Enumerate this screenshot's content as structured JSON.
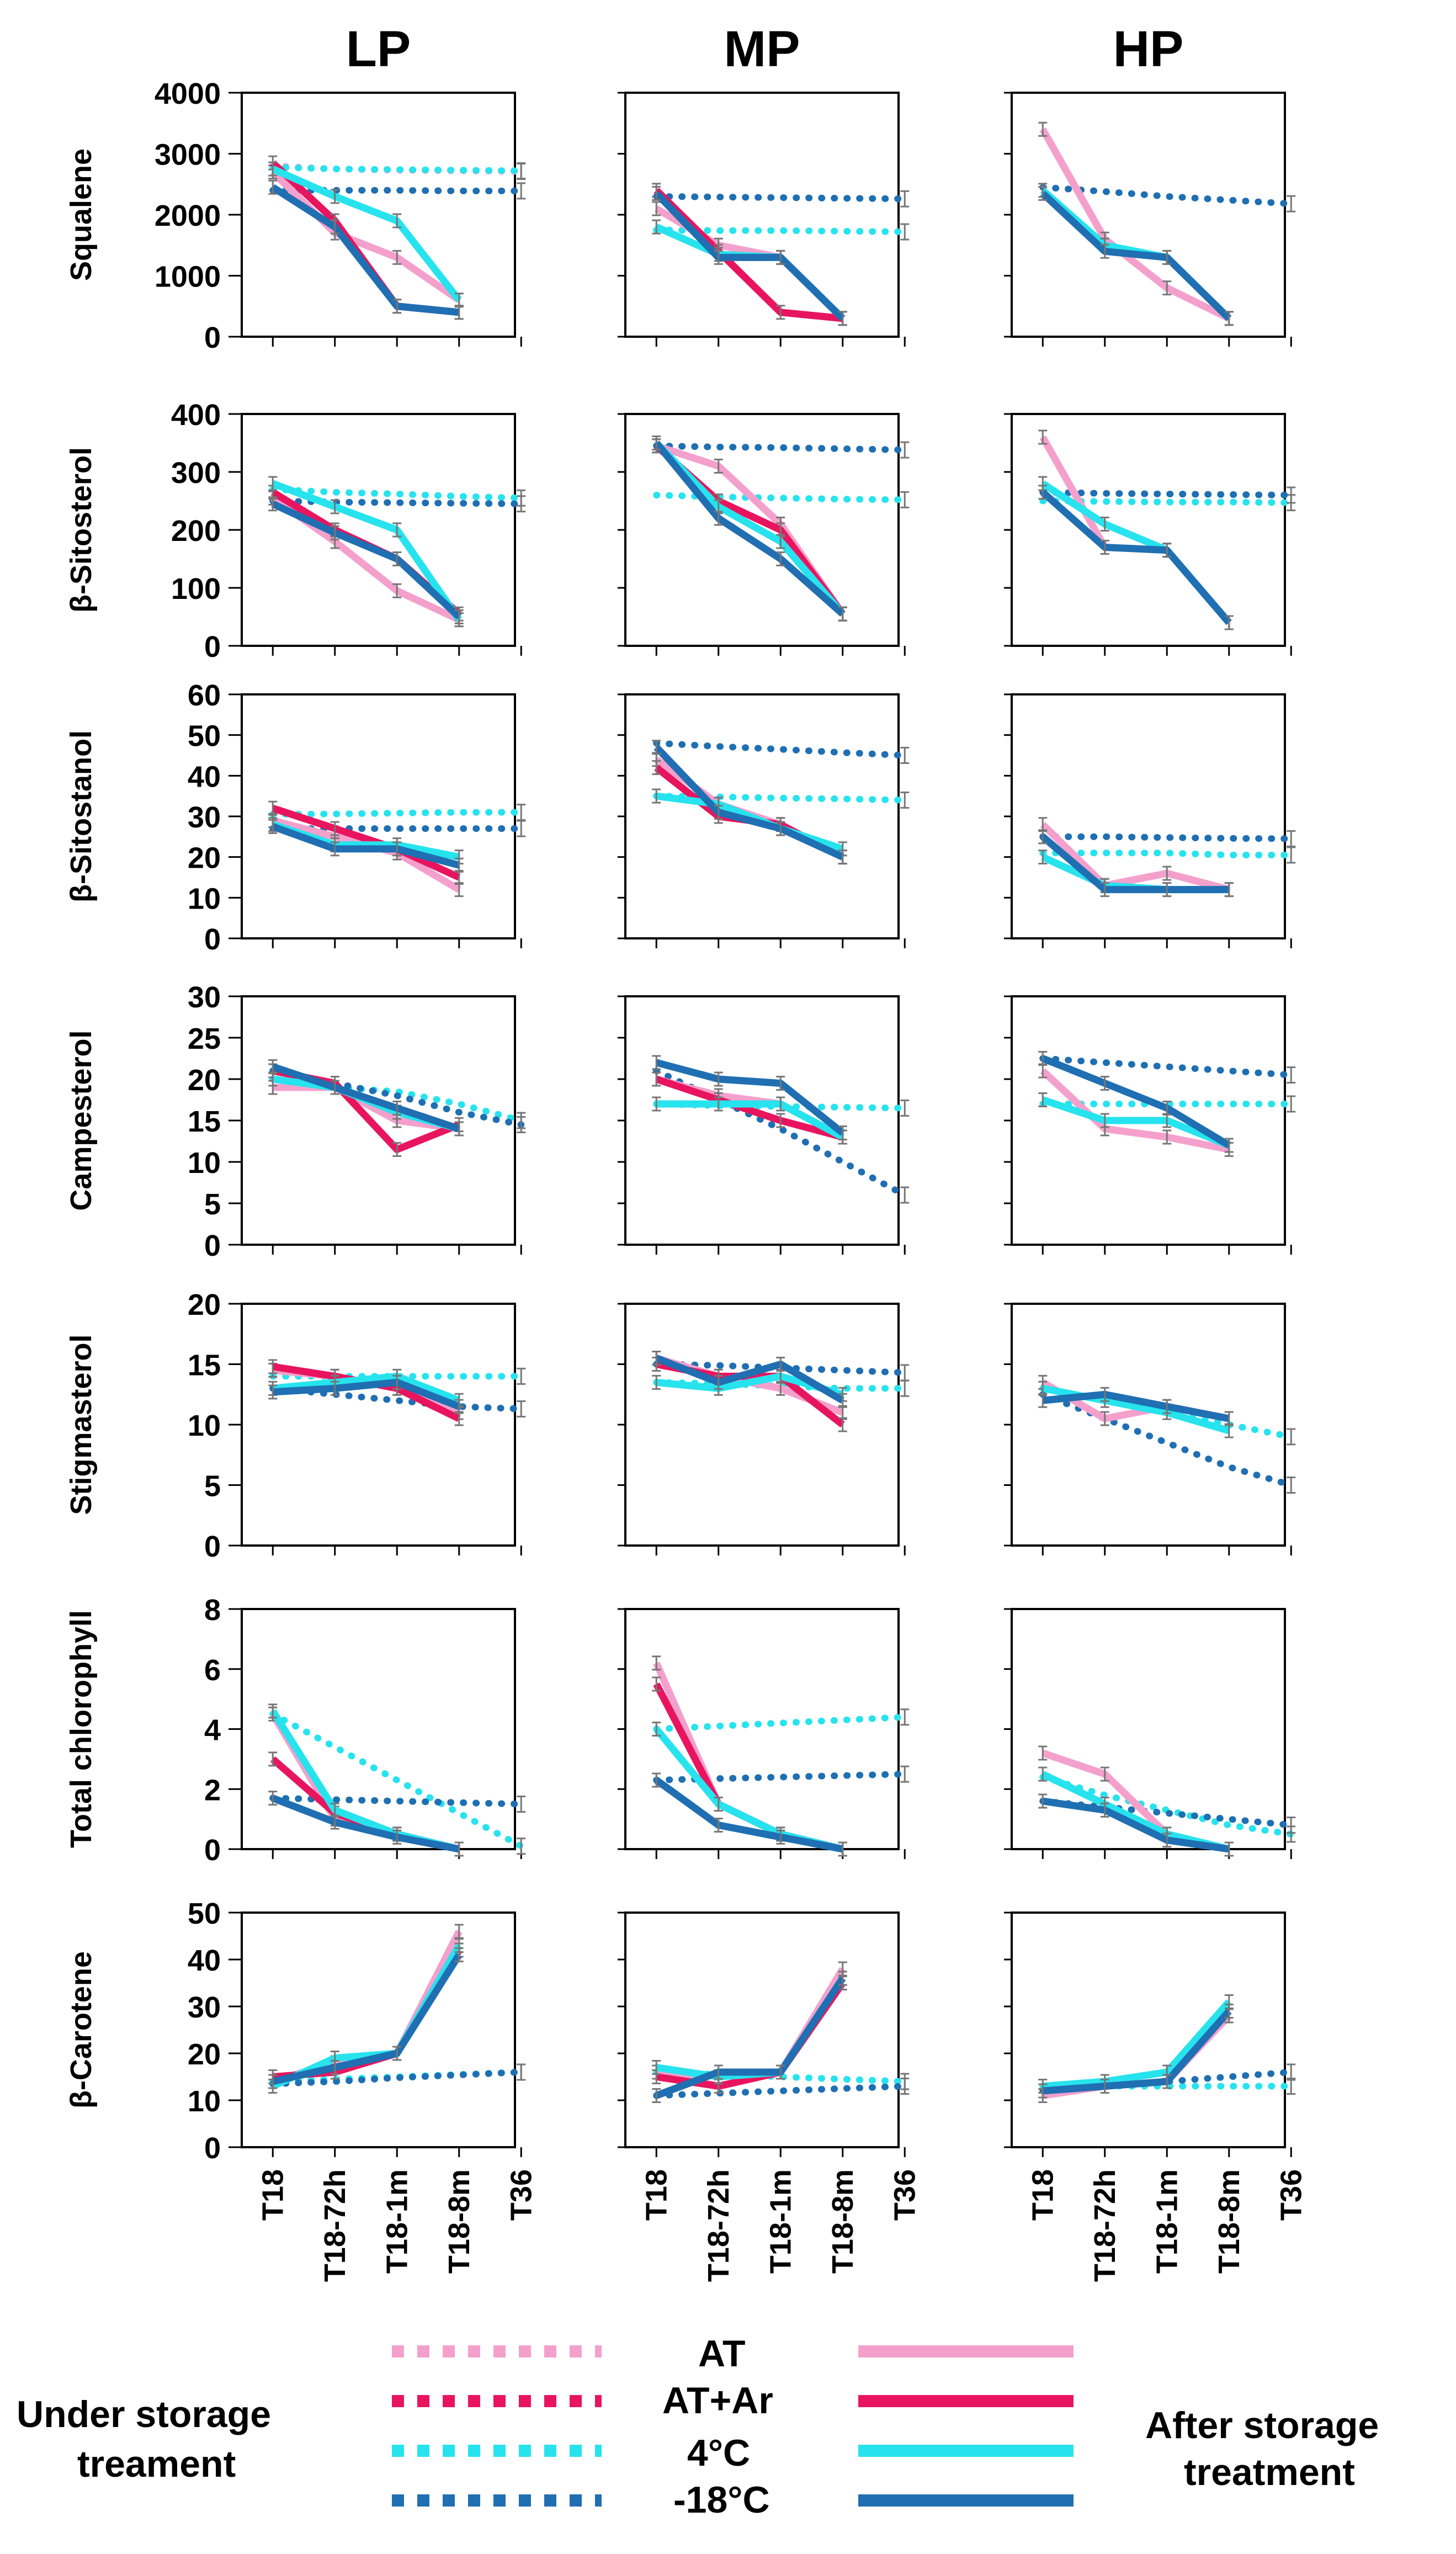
{
  "figure": {
    "columns": [
      "LP",
      "MP",
      "HP"
    ],
    "x_categories": [
      "T18",
      "T18-72h",
      "T18-1m",
      "T18-8m",
      "T36"
    ]
  },
  "legend": {
    "left_label_line1": "Under storage",
    "left_label_line2": "treament",
    "right_label_line1": "After storage",
    "right_label_line2": "treatment",
    "items": [
      {
        "key": "AT",
        "label": "AT",
        "color": "#f4a0cc"
      },
      {
        "key": "ATAr",
        "label": "AT+Ar",
        "color": "#e8155e"
      },
      {
        "key": "C4",
        "label": "4°C",
        "color": "#26e3ee"
      },
      {
        "key": "Cm18",
        "label": "-18°C",
        "color": "#1f6fb2"
      }
    ]
  },
  "chart_data": [
    {
      "type": "line",
      "row_label": "Squalene",
      "ylim": [
        0,
        4000
      ],
      "yticks": [
        "0",
        "1000",
        "2000",
        "3000",
        "4000"
      ],
      "panels": [
        {
          "column": "LP",
          "under": {
            "AT": [
              2800,
              2750,
              2730,
              2720,
              2710
            ],
            "C4": [
              2780,
              2750,
              2740,
              2730,
              2720
            ],
            "Cm18": [
              2400,
              2400,
              2400,
              2390,
              2390
            ]
          },
          "after": {
            "AT": [
              2700,
              1700,
              1300,
              600
            ],
            "ATAr": [
              2850,
              1900,
              500,
              400
            ],
            "C4": [
              2750,
              2300,
              1900,
              600
            ],
            "Cm18": [
              2450,
              1800,
              500,
              400
            ]
          }
        },
        {
          "column": "MP",
          "under": {
            "C4": [
              1750,
              1740,
              1740,
              1730,
              1720
            ],
            "Cm18": [
              2300,
              2290,
              2280,
              2270,
              2260
            ]
          },
          "after": {
            "AT": [
              2100,
              1500,
              1300,
              300
            ],
            "ATAr": [
              2400,
              1400,
              400,
              300
            ],
            "C4": [
              1800,
              1350,
              1300,
              300
            ],
            "Cm18": [
              2350,
              1300,
              1300,
              300
            ]
          }
        },
        {
          "column": "HP",
          "under": {
            "Cm18": [
              2450,
              2380,
              2300,
              2240,
              2180
            ]
          },
          "after": {
            "AT": [
              3400,
              1600,
              800,
              300
            ],
            "C4": [
              2400,
              1500,
              1300,
              300
            ],
            "Cm18": [
              2350,
              1400,
              1300,
              300
            ]
          }
        }
      ]
    },
    {
      "type": "line",
      "row_label": "β-Sitosterol",
      "ylim": [
        0,
        400
      ],
      "yticks": [
        "0",
        "100",
        "200",
        "300",
        "400"
      ],
      "panels": [
        {
          "column": "LP",
          "under": {
            "C4": [
              270,
              265,
              262,
              258,
              255
            ],
            "Cm18": [
              250,
              248,
              247,
              246,
              245
            ]
          },
          "after": {
            "AT": [
              255,
              180,
              95,
              45
            ],
            "ATAr": [
              265,
              200,
              150,
              55
            ],
            "C4": [
              280,
              240,
              200,
              45
            ],
            "Cm18": [
              245,
              195,
              150,
              50
            ]
          }
        },
        {
          "column": "MP",
          "under": {
            "C4": [
              260,
              257,
              255,
              253,
              252
            ],
            "Cm18": [
              345,
              343,
              342,
              340,
              338
            ]
          },
          "after": {
            "AT": [
              345,
              310,
              210,
              55
            ],
            "ATAr": [
              345,
              250,
              200,
              55
            ],
            "C4": [
              350,
              240,
              180,
              55
            ],
            "Cm18": [
              350,
              220,
              150,
              55
            ]
          }
        },
        {
          "column": "HP",
          "under": {
            "C4": [
              250,
              249,
              248,
              248,
              247
            ],
            "Cm18": [
              265,
              263,
              262,
              261,
              260
            ]
          },
          "after": {
            "AT": [
              360,
              170,
              165,
              40
            ],
            "C4": [
              280,
              210,
              165,
              40
            ],
            "Cm18": [
              265,
              170,
              165,
              40
            ]
          }
        }
      ]
    },
    {
      "type": "line",
      "row_label": "β-Sitostanol",
      "ylim": [
        0,
        60
      ],
      "yticks": [
        "0",
        "10",
        "20",
        "30",
        "40",
        "50",
        "60"
      ],
      "panels": [
        {
          "column": "LP",
          "under": {
            "C4": [
              30.5,
              30.6,
              30.8,
              31,
              31
            ],
            "Cm18": [
              27,
              27,
              27,
              27,
              27
            ]
          },
          "after": {
            "AT": [
              29,
              25,
              21,
              12
            ],
            "ATAr": [
              32,
              27,
              22,
              15
            ],
            "C4": [
              28,
              23,
              23,
              20
            ],
            "Cm18": [
              27.5,
              22,
              22,
              18
            ]
          }
        },
        {
          "column": "MP",
          "under": {
            "C4": [
              35,
              34.8,
              34.5,
              34.3,
              34
            ],
            "Cm18": [
              48,
              47.2,
              46.5,
              45.7,
              45
            ]
          },
          "after": {
            "AT": [
              44,
              33,
              28,
              20
            ],
            "ATAr": [
              42,
              30,
              28,
              20
            ],
            "C4": [
              35,
              33,
              27,
              22
            ],
            "Cm18": [
              47,
              31,
              27,
              20
            ]
          }
        },
        {
          "column": "HP",
          "under": {
            "C4": [
              21,
              21,
              21,
              20.5,
              20.5
            ],
            "Cm18": [
              25,
              25,
              24.8,
              24.6,
              24.5
            ]
          },
          "after": {
            "AT": [
              28,
              13,
              16,
              12
            ],
            "C4": [
              20,
              13,
              12,
              12
            ],
            "Cm18": [
              25,
              12,
              12,
              12
            ]
          }
        }
      ]
    },
    {
      "type": "line",
      "row_label": "Campesterol",
      "ylim": [
        0,
        30
      ],
      "yticks": [
        "0",
        "5",
        "10",
        "15",
        "20",
        "25",
        "30"
      ],
      "panels": [
        {
          "column": "LP",
          "under": {
            "C4": [
              20,
              19,
              18.5,
              17,
              15
            ],
            "Cm18": [
              21,
              19.5,
              18,
              16,
              14.5
            ]
          },
          "after": {
            "AT": [
              19,
              19,
              15,
              14
            ],
            "ATAr": [
              21,
              19.5,
              11.5,
              14.5
            ],
            "C4": [
              20,
              19,
              16,
              14
            ],
            "Cm18": [
              21.5,
              19,
              16.5,
              14
            ]
          }
        },
        {
          "column": "MP",
          "under": {
            "C4": [
              17,
              16.8,
              16.7,
              16.6,
              16.5
            ],
            "Cm18": [
              21,
              17.5,
              14,
              10,
              6
            ]
          },
          "after": {
            "AT": [
              20,
              18,
              17,
              13
            ],
            "ATAr": [
              20,
              17.5,
              15,
              13
            ],
            "C4": [
              17,
              17,
              17,
              13
            ],
            "Cm18": [
              22,
              20,
              19.5,
              13.5
            ]
          }
        },
        {
          "column": "HP",
          "under": {
            "C4": [
              17,
              17,
              17,
              17,
              17
            ],
            "Cm18": [
              22.5,
              22,
              21.5,
              21,
              20.5
            ]
          },
          "after": {
            "AT": [
              21,
              14,
              13,
              11.5
            ],
            "C4": [
              17.5,
              15,
              15,
              12
            ],
            "Cm18": [
              22.5,
              19.5,
              16.5,
              12
            ]
          }
        }
      ]
    },
    {
      "type": "line",
      "row_label": "Stigmasterol",
      "ylim": [
        0,
        20
      ],
      "yticks": [
        "0",
        "5",
        "10",
        "15",
        "20"
      ],
      "panels": [
        {
          "column": "LP",
          "under": {
            "C4": [
              14,
              14,
              14,
              14,
              14
            ],
            "Cm18": [
              13,
              12.5,
              12,
              11.5,
              11.3
            ]
          },
          "after": {
            "AT": [
              14.5,
              14,
              13,
              11
            ],
            "ATAr": [
              14.8,
              14,
              13,
              10.5
            ],
            "C4": [
              13,
              13.5,
              14,
              12
            ],
            "Cm18": [
              12.7,
              13,
              13.5,
              11.5
            ]
          }
        },
        {
          "column": "MP",
          "under": {
            "C4": [
              13.5,
              13.4,
              13.2,
              13,
              13
            ],
            "Cm18": [
              15,
              14.9,
              14.7,
              14.5,
              14.3
            ]
          },
          "after": {
            "AT": [
              15.5,
              14,
              13,
              11
            ],
            "ATAr": [
              15,
              14,
              14,
              10
            ],
            "C4": [
              13.5,
              13,
              14,
              12.5
            ],
            "Cm18": [
              15.5,
              13.5,
              15,
              12
            ]
          }
        },
        {
          "column": "HP",
          "under": {
            "C4": [
              13,
              12,
              11,
              10,
              9
            ],
            "Cm18": [
              12.5,
              10.5,
              8.5,
              6.5,
              5
            ]
          },
          "after": {
            "AT": [
              13.5,
              10.5,
              11.5,
              10.5
            ],
            "C4": [
              13,
              12,
              11,
              9.5
            ],
            "Cm18": [
              12,
              12.5,
              11.5,
              10.5
            ]
          }
        }
      ]
    },
    {
      "type": "line",
      "row_label": "Total chlorophyll",
      "ylim": [
        0,
        8
      ],
      "yticks": [
        "0",
        "2",
        "4",
        "6",
        "8"
      ],
      "panels": [
        {
          "column": "LP",
          "under": {
            "C4": [
              4.5,
              3.4,
              2.3,
              1.2,
              0.1
            ],
            "Cm18": [
              1.7,
              1.65,
              1.6,
              1.55,
              1.5
            ]
          },
          "after": {
            "AT": [
              4.5,
              1.0,
              0.5,
              0.0
            ],
            "ATAr": [
              3.0,
              1.2,
              0.5,
              0.0
            ],
            "C4": [
              4.6,
              1.3,
              0.5,
              0.0
            ],
            "Cm18": [
              1.7,
              0.9,
              0.4,
              0.0
            ]
          }
        },
        {
          "column": "MP",
          "under": {
            "C4": [
              4.0,
              4.1,
              4.2,
              4.3,
              4.4
            ],
            "Cm18": [
              2.3,
              2.35,
              2.4,
              2.45,
              2.5
            ]
          },
          "after": {
            "AT": [
              6.2,
              1.5,
              0.5,
              0.0
            ],
            "ATAr": [
              5.5,
              1.5,
              0.5,
              0.0
            ],
            "C4": [
              4.0,
              1.5,
              0.5,
              0.0
            ],
            "Cm18": [
              2.3,
              0.8,
              0.4,
              0.0
            ]
          }
        },
        {
          "column": "HP",
          "under": {
            "C4": [
              2.4,
              1.8,
              1.3,
              0.8,
              0.5
            ],
            "Cm18": [
              1.6,
              1.4,
              1.2,
              1.0,
              0.8
            ]
          },
          "after": {
            "AT": [
              3.2,
              2.5,
              0.5,
              0.0
            ],
            "C4": [
              2.5,
              1.5,
              0.5,
              0.0
            ],
            "Cm18": [
              1.6,
              1.3,
              0.3,
              0.0
            ]
          }
        }
      ]
    },
    {
      "type": "line",
      "row_label": "β-Carotene",
      "ylim": [
        0,
        50
      ],
      "yticks": [
        "0",
        "10",
        "20",
        "30",
        "40",
        "50"
      ],
      "panels": [
        {
          "column": "LP",
          "under": {
            "C4": [
              14,
              14.5,
              15,
              15.5,
              16
            ],
            "Cm18": [
              13.5,
              14,
              14.8,
              15.4,
              16
            ]
          },
          "after": {
            "AT": [
              14,
              18,
              20,
              46
            ],
            "ATAr": [
              15,
              16,
              20,
              42
            ],
            "C4": [
              13,
              19,
              20,
              43
            ],
            "Cm18": [
              14,
              17,
              20,
              41
            ]
          }
        },
        {
          "column": "MP",
          "under": {
            "C4": [
              16,
              15.5,
              15,
              14.5,
              14
            ],
            "Cm18": [
              11,
              11.5,
              12,
              12.5,
              13
            ]
          },
          "after": {
            "AT": [
              16,
              13,
              16,
              38
            ],
            "ATAr": [
              15,
              13,
              16,
              35
            ],
            "C4": [
              17,
              15,
              16,
              36
            ],
            "Cm18": [
              11,
              16,
              16,
              36
            ]
          }
        },
        {
          "column": "HP",
          "under": {
            "C4": [
              13,
              13,
              13,
              13,
              13
            ],
            "Cm18": [
              12,
              13,
              14,
              15,
              16
            ]
          },
          "after": {
            "AT": [
              11,
              13,
              14,
              28
            ],
            "C4": [
              13,
              14,
              16,
              31
            ],
            "Cm18": [
              12,
              13,
              14,
              29
            ]
          }
        }
      ]
    }
  ]
}
